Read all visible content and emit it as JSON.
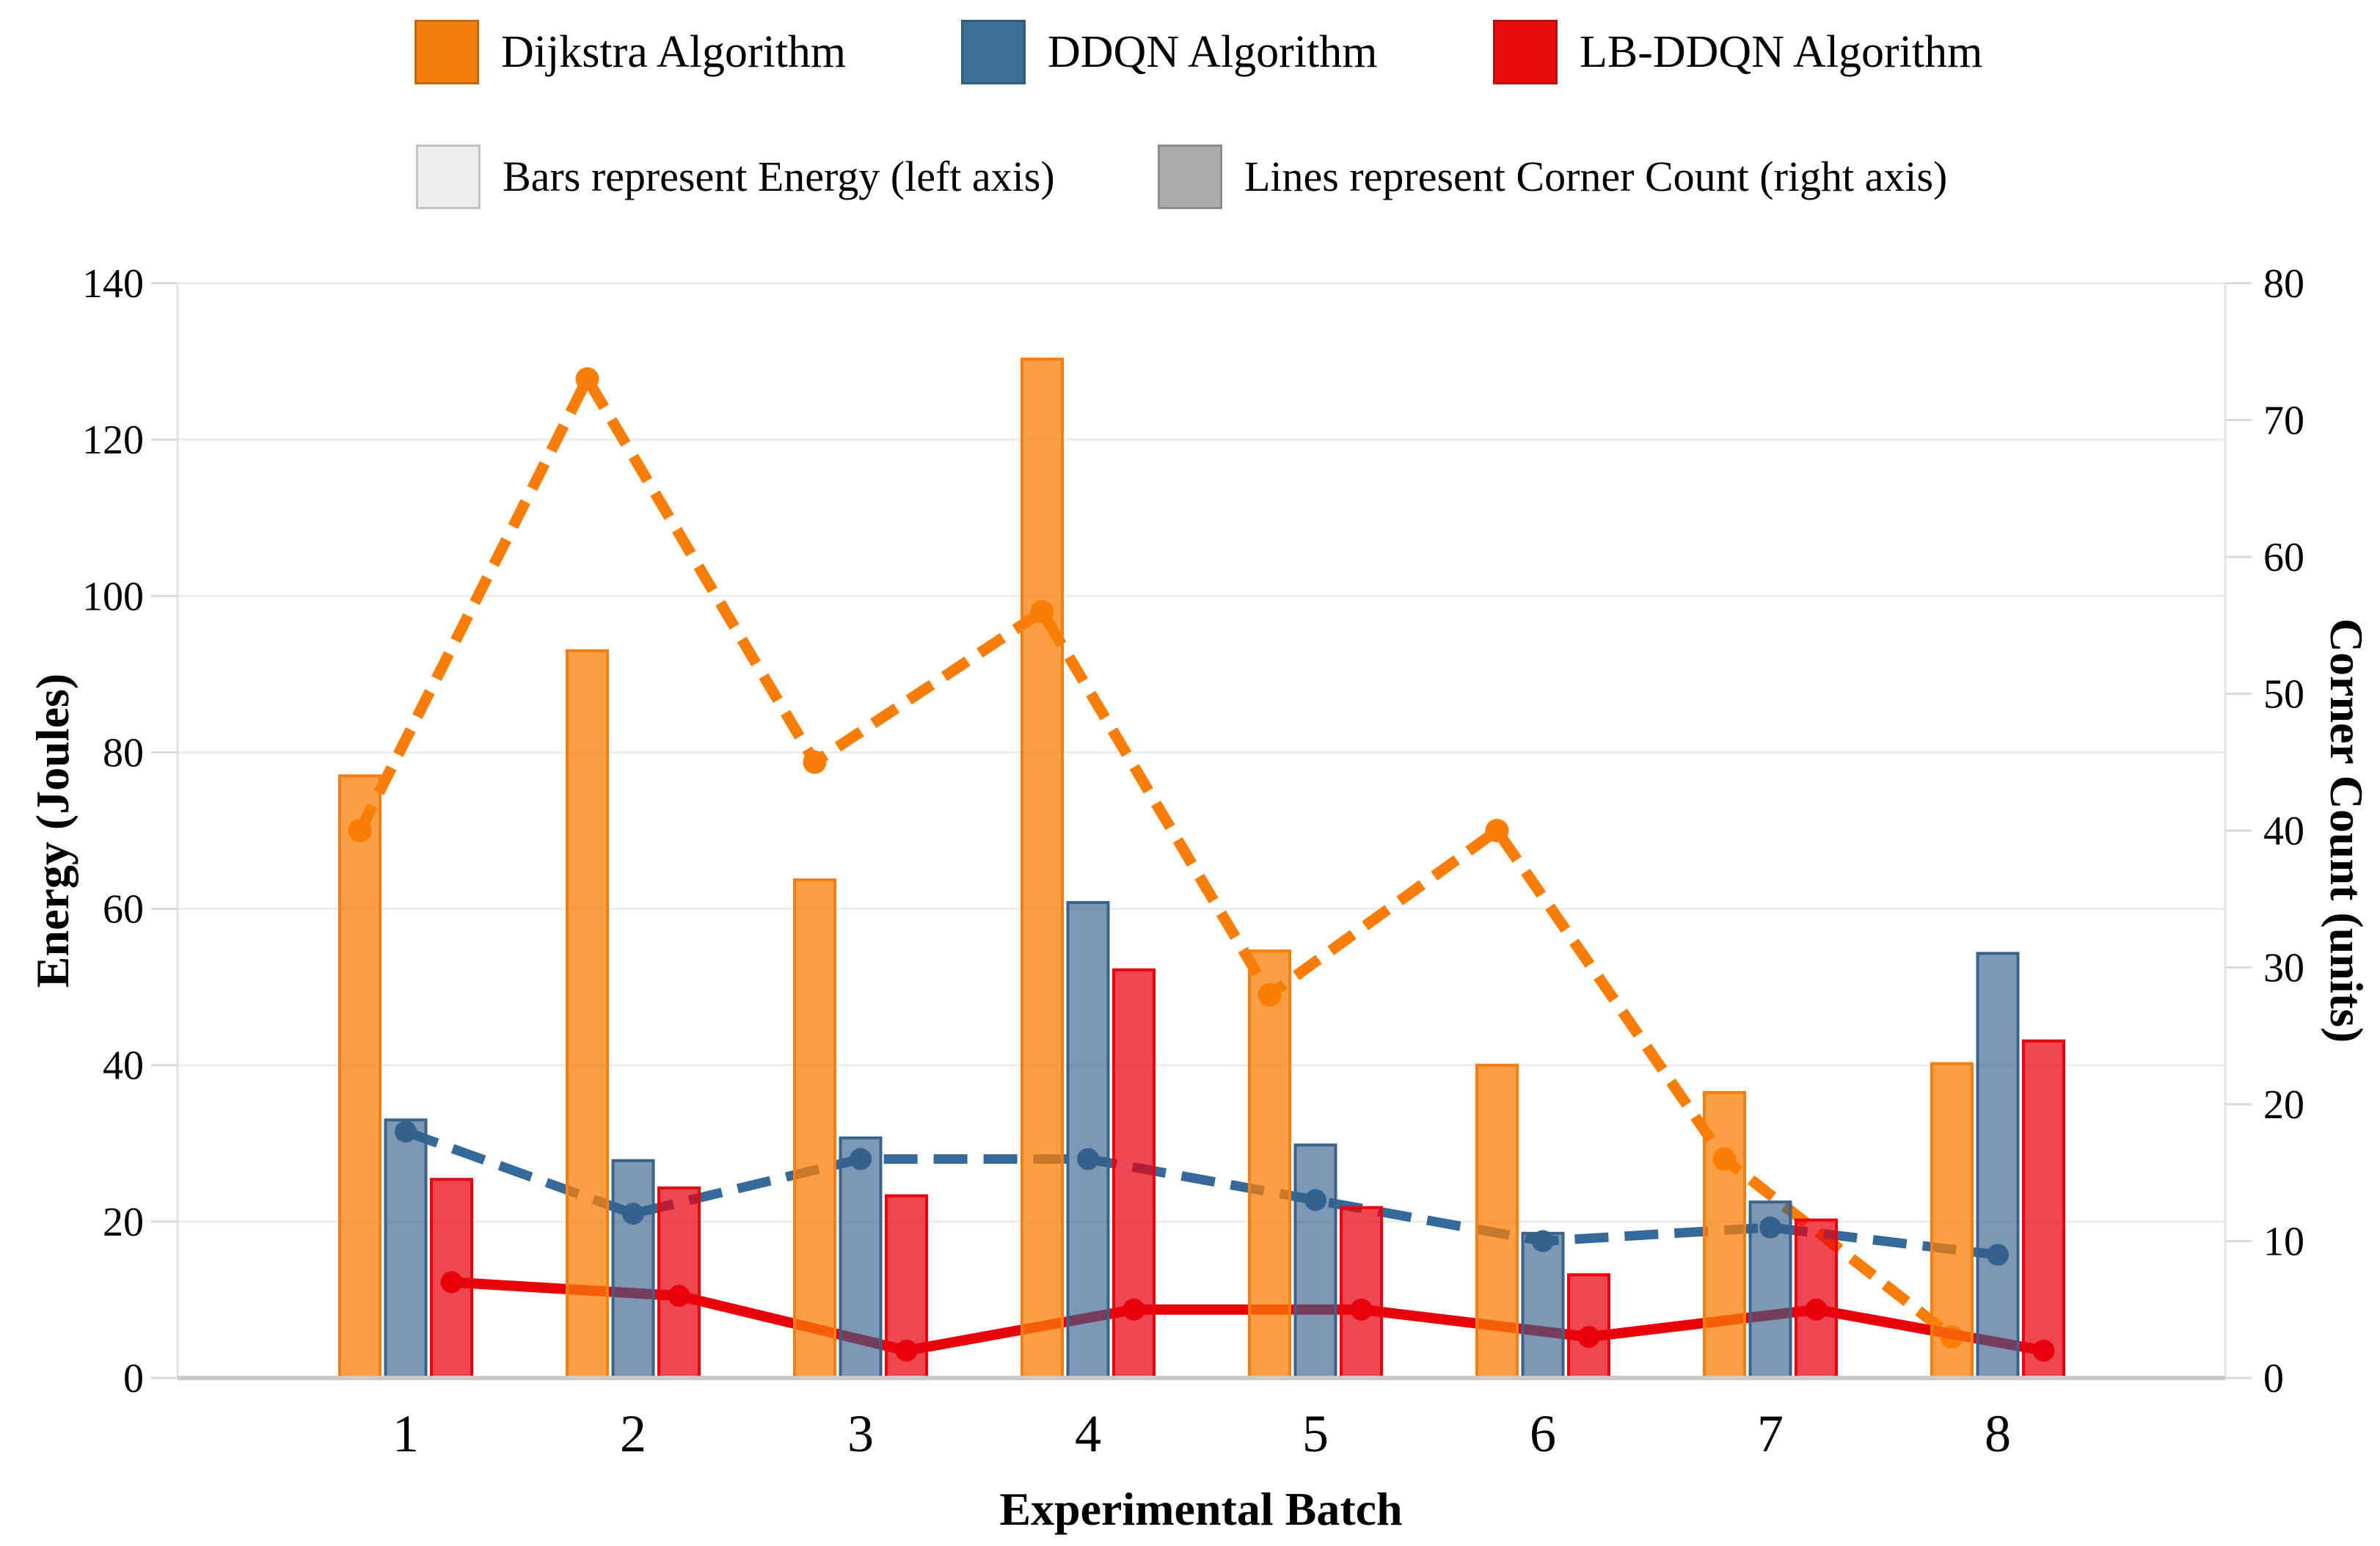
{
  "legend": {
    "series": [
      {
        "label": "Dijkstra Algorithm",
        "swatch_color": "#F57E0E"
      },
      {
        "label": "DDQN Algorithm",
        "swatch_color": "#3A6F99"
      },
      {
        "label": "LB-DDQN Algorithm",
        "swatch_color": "#E90E0E"
      }
    ],
    "notes": [
      {
        "label": "Bars represent Energy (left axis)",
        "swatch_color": "#EDEDED"
      },
      {
        "label": "Lines represent Corner Count (right axis)",
        "swatch_color": "#ABABAB"
      }
    ]
  },
  "chart_data": {
    "type": "bar+line dual-axis",
    "categories": [
      "1",
      "2",
      "3",
      "4",
      "5",
      "6",
      "7",
      "8"
    ],
    "x_axis": {
      "label": "Experimental Batch"
    },
    "left_axis": {
      "label": "Energy (Joules)",
      "min": 0,
      "max": 140,
      "step": 20,
      "ticks": [
        0,
        20,
        40,
        60,
        80,
        100,
        120,
        140
      ]
    },
    "right_axis": {
      "label": "Corner Count (units)",
      "min": 0,
      "max": 80,
      "step": 10,
      "ticks": [
        0,
        10,
        20,
        30,
        40,
        50,
        60,
        70,
        80
      ]
    },
    "grid": "horizontal only",
    "legend_position": "top",
    "bar_series": [
      {
        "name": "Dijkstra Algorithm",
        "axis": "left",
        "fill": "rgba(249,125,6,0.75)",
        "stroke": "#F57E14",
        "values": [
          77.0,
          93.0,
          63.7,
          130.3,
          54.6,
          40.0,
          36.5,
          40.2
        ]
      },
      {
        "name": "DDQN Algorithm",
        "axis": "left",
        "fill": "rgba(51,94,137,0.64)",
        "stroke": "#3A638C",
        "values": [
          33.0,
          27.8,
          30.7,
          60.8,
          29.8,
          18.5,
          22.5,
          54.3
        ]
      },
      {
        "name": "LB-DDQN Algorithm",
        "axis": "left",
        "fill": "rgba(233,0,15,0.72)",
        "stroke": "#EC000A",
        "values": [
          25.4,
          24.3,
          23.3,
          52.2,
          21.8,
          13.2,
          20.2,
          43.1
        ]
      }
    ],
    "line_series": [
      {
        "name": "Dijkstra Algorithm",
        "axis": "right",
        "style": "dashed",
        "color": "#F97D06",
        "dash": [
          38,
          20
        ],
        "width": 15,
        "marker_r": 16,
        "values": [
          40,
          73,
          45,
          56,
          28,
          40,
          16,
          3
        ]
      },
      {
        "name": "DDQN Algorithm",
        "axis": "right",
        "style": "dashed",
        "color": "#35699A",
        "dash": [
          46,
          22
        ],
        "width": 13,
        "marker_r": 15,
        "values": [
          18,
          12,
          16,
          16,
          13,
          10,
          11,
          9
        ]
      },
      {
        "name": "LB-DDQN Algorithm",
        "axis": "right",
        "style": "solid",
        "color": "#E80009",
        "dash": null,
        "width": 14,
        "marker_r": 15,
        "values": [
          7,
          6,
          2,
          5,
          5,
          3,
          5,
          2
        ]
      }
    ]
  },
  "palette": {
    "gridline": "#ECECEC",
    "spine": "#E3E3E3",
    "tick_mark": "#D9D9D9",
    "baseline": "#C9C9C9",
    "background": "#FFFFFF"
  }
}
